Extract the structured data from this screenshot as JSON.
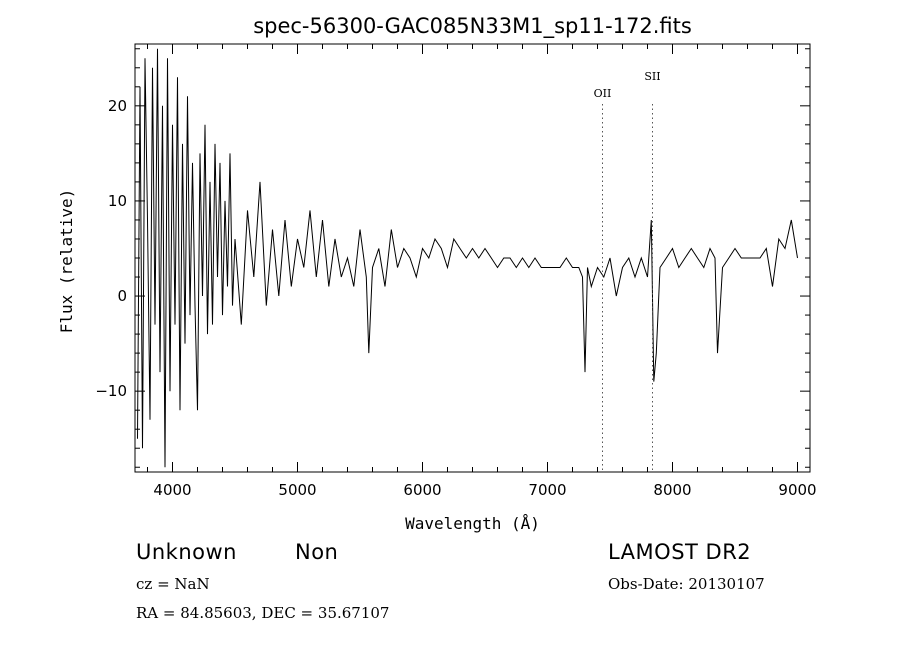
{
  "chart_data": {
    "type": "line",
    "title": "spec-56300-GAC085N33M1_sp11-172.fits",
    "xlabel": "Wavelength (Å)",
    "ylabel": "Flux (relative)",
    "xlim": [
      3700,
      9100
    ],
    "ylim": [
      -18.5,
      26.5
    ],
    "xticks": [
      4000,
      5000,
      6000,
      7000,
      8000,
      9000
    ],
    "yticks": [
      -10,
      0,
      10,
      20
    ],
    "xtick_labels": [
      "4000",
      "5000",
      "6000",
      "7000",
      "8000",
      "9000"
    ],
    "ytick_labels": [
      "−10",
      "0",
      "10",
      "20"
    ],
    "series": [
      {
        "x": [
          3720,
          3740,
          3760,
          3780,
          3800,
          3820,
          3840,
          3860,
          3880,
          3900,
          3920,
          3940,
          3960,
          3980,
          4000,
          4020,
          4040,
          4060,
          4080,
          4100,
          4120,
          4140,
          4160,
          4180,
          4200,
          4220,
          4240,
          4260,
          4280,
          4300,
          4320,
          4340,
          4360,
          4380,
          4400,
          4420,
          4440,
          4460,
          4480,
          4500,
          4550,
          4600,
          4650,
          4700,
          4750,
          4800,
          4850,
          4900,
          4950,
          5000,
          5050,
          5100,
          5150,
          5200,
          5250,
          5300,
          5350,
          5400,
          5450,
          5500,
          5550,
          5570,
          5600,
          5650,
          5700,
          5750,
          5800,
          5850,
          5900,
          5950,
          6000,
          6050,
          6100,
          6150,
          6200,
          6250,
          6300,
          6350,
          6400,
          6450,
          6500,
          6550,
          6600,
          6650,
          6700,
          6750,
          6800,
          6850,
          6900,
          6950,
          7000,
          7050,
          7100,
          7150,
          7200,
          7250,
          7280,
          7300,
          7320,
          7350,
          7400,
          7450,
          7500,
          7550,
          7600,
          7650,
          7700,
          7750,
          7800,
          7830,
          7850,
          7870,
          7900,
          7950,
          8000,
          8050,
          8100,
          8150,
          8200,
          8250,
          8300,
          8340,
          8360,
          8400,
          8450,
          8500,
          8550,
          8600,
          8650,
          8700,
          8750,
          8800,
          8850,
          8900,
          8950,
          9000
        ],
        "y": [
          -15,
          22,
          -16,
          25,
          8,
          -13,
          24,
          -3,
          26,
          -8,
          20,
          -18,
          25,
          -10,
          18,
          -3,
          23,
          -12,
          16,
          -5,
          21,
          -2,
          14,
          -1,
          -12,
          15,
          0,
          18,
          -4,
          12,
          -3,
          16,
          2,
          14,
          -2,
          10,
          1,
          15,
          -1,
          6,
          -3,
          9,
          2,
          12,
          -1,
          7,
          0,
          8,
          1,
          6,
          3,
          9,
          2,
          8,
          1,
          6,
          2,
          4,
          1,
          7,
          2,
          -6,
          3,
          5,
          1,
          7,
          3,
          5,
          4,
          2,
          5,
          4,
          6,
          5,
          3,
          6,
          5,
          4,
          5,
          4,
          5,
          4,
          3,
          4,
          4,
          3,
          4,
          3,
          4,
          3,
          3,
          3,
          3,
          4,
          3,
          3,
          2,
          -8,
          3,
          1,
          3,
          2,
          4,
          0,
          3,
          4,
          2,
          4,
          2,
          8,
          -9,
          -6,
          3,
          4,
          5,
          3,
          4,
          5,
          4,
          3,
          5,
          4,
          -6,
          3,
          4,
          5,
          4,
          4,
          4,
          4,
          5,
          1,
          6,
          5,
          8,
          4
        ]
      }
    ],
    "annotations": [
      {
        "label": "OII",
        "x": 7440
      },
      {
        "label": "SII",
        "x": 7840
      }
    ]
  },
  "footer": {
    "left_title": "Unknown",
    "left_subtitle": "Non",
    "cz": "cz = NaN",
    "coords": "RA =  84.85603, DEC =  35.67107",
    "survey": "LAMOST DR2",
    "obs_date": "Obs-Date: 20130107"
  }
}
